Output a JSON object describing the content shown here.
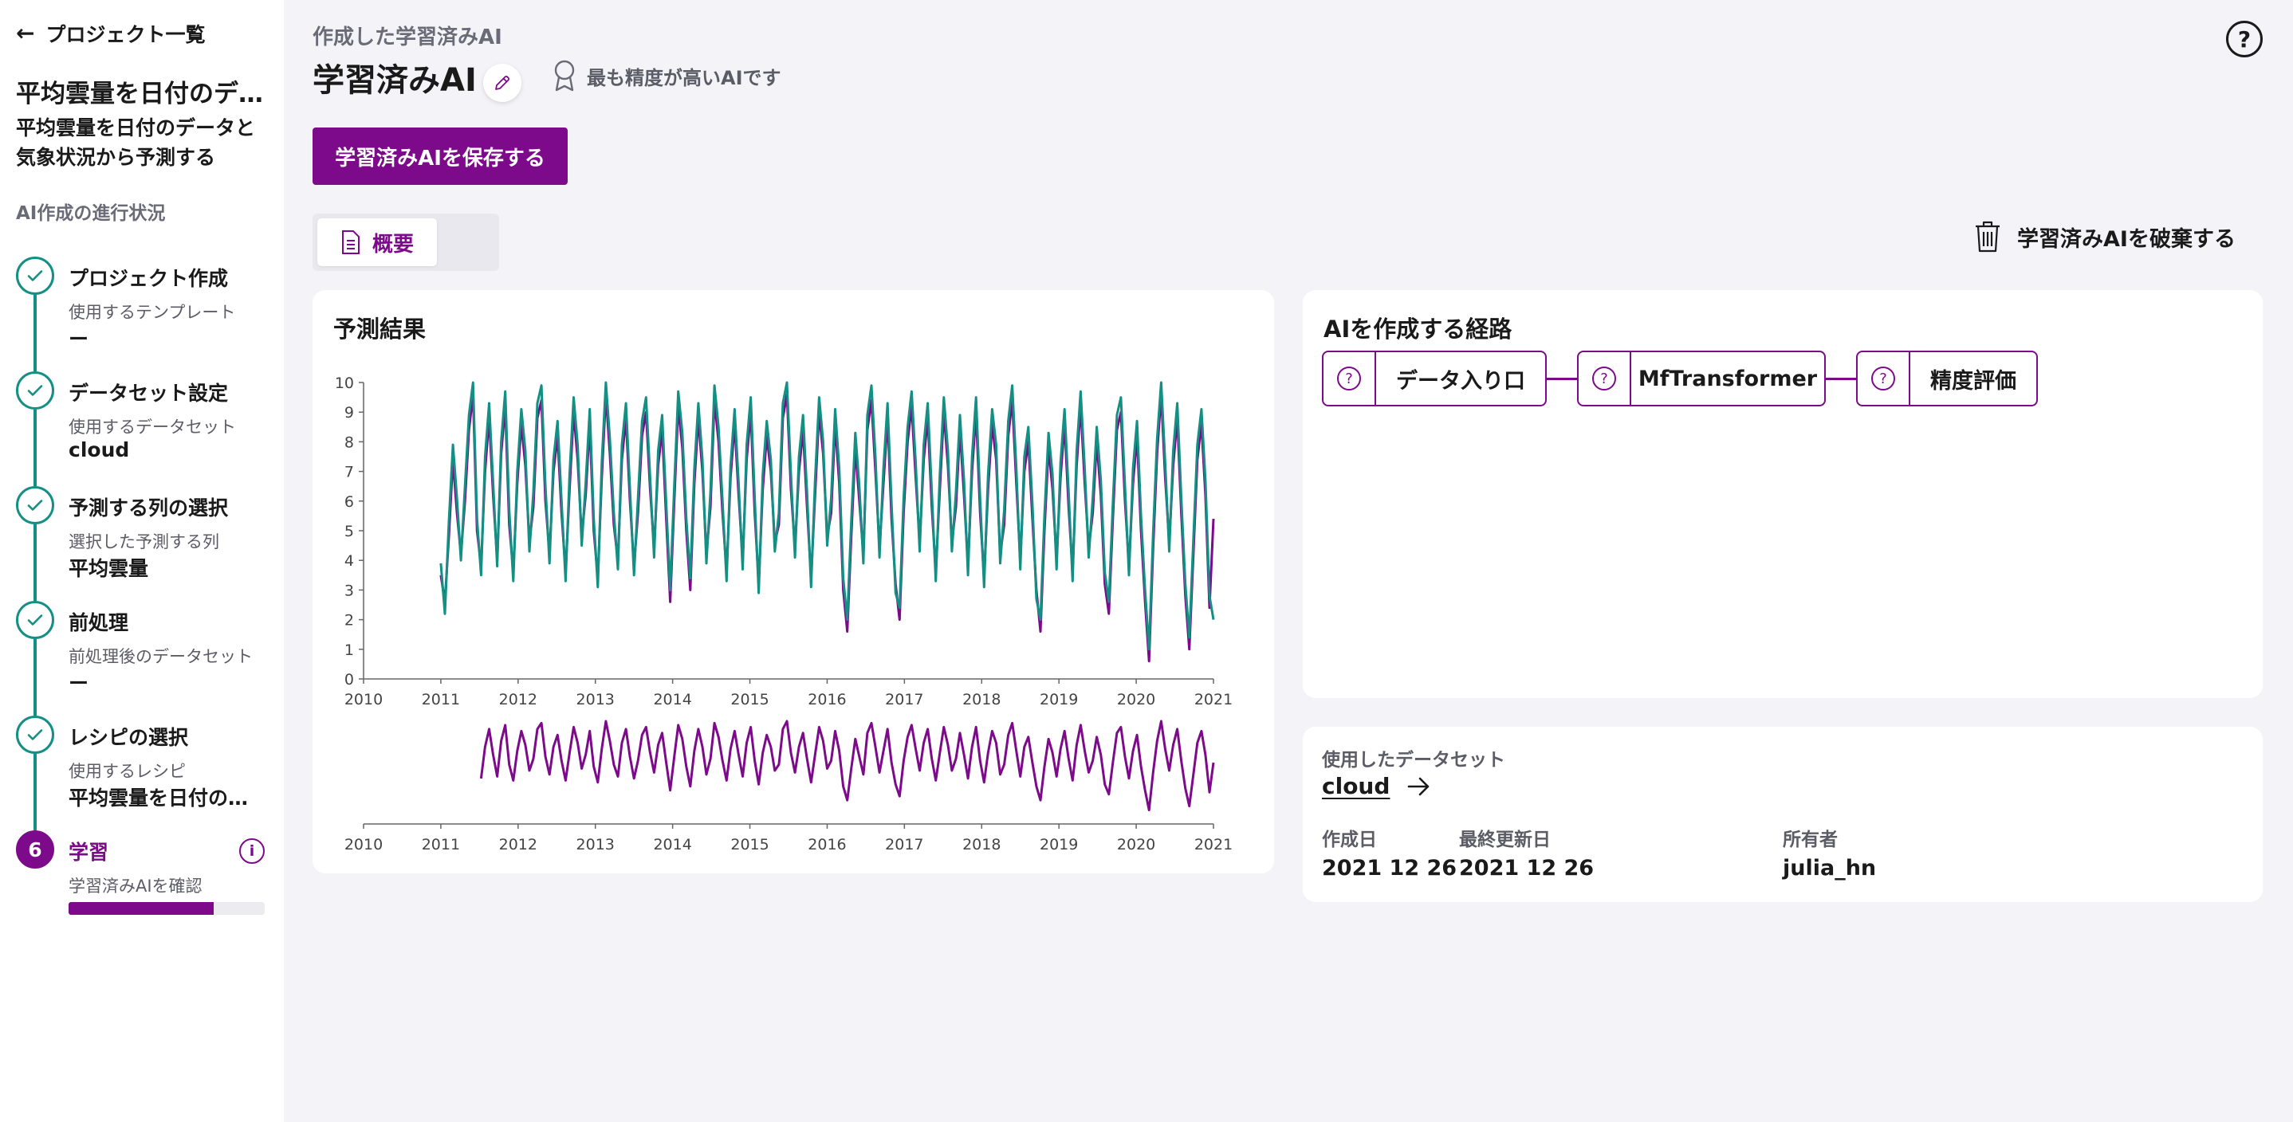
{
  "sidebar": {
    "back_label": "プロジェクト一覧",
    "project_title": "平均雲量を日付のデータと気象状況から予測する",
    "project_desc": "平均雲量を日付のデータと気象状況から予測する",
    "progress_label": "AI作成の進行状況",
    "steps": [
      {
        "title": "プロジェクト作成",
        "sub": "使用するテンプレート",
        "value": "ー"
      },
      {
        "title": "データセット設定",
        "sub": "使用するデータセット",
        "value": "cloud"
      },
      {
        "title": "予測する列の選択",
        "sub": "選択した予測する列",
        "value": "平均雲量"
      },
      {
        "title": "前処理",
        "sub": "前処理後のデータセット",
        "value": "ー"
      },
      {
        "title": "レシピの選択",
        "sub": "使用するレシピ",
        "value": "平均雲量を日付のデータと気象状況から予測する"
      },
      {
        "number": "6",
        "title": "学習",
        "sub": "学習済みAIを確認",
        "progress": 0.74
      }
    ]
  },
  "header": {
    "sub": "作成した学習済みAI",
    "title": "学習済みAI",
    "best_badge": "最も精度が高いAIです",
    "save_label": "学習済みAIを保存する",
    "help": "?"
  },
  "tabs": [
    {
      "label": "概要"
    }
  ],
  "discard_label": "学習済みAIを破棄する",
  "result_card": {
    "title": "予測結果"
  },
  "route_card": {
    "title": "AIを作成する経路",
    "nodes": [
      {
        "label": "データ入り口"
      },
      {
        "label": "MfTransformer"
      },
      {
        "label": "精度評価"
      }
    ]
  },
  "dataset_card": {
    "label": "使用したデータセット",
    "name": "cloud",
    "created_label": "作成日",
    "created": "2021 12 26",
    "updated_label": "最終更新日",
    "updated": "2021 12 26",
    "owner_label": "所有者",
    "owner": "julia_hn"
  },
  "colors": {
    "accent": "#7d0a8a",
    "teal": "#138f84"
  },
  "chart_data": {
    "type": "line",
    "x_start": 2011.0,
    "x_end": 2021.0,
    "xlim": [
      2010,
      2021
    ],
    "ylim": [
      0,
      10
    ],
    "x_ticks": [
      "2010",
      "2011",
      "2012",
      "2013",
      "2014",
      "2015",
      "2016",
      "2017",
      "2018",
      "2019",
      "2020",
      "2021"
    ],
    "y_ticks": [
      "0",
      "1",
      "2",
      "3",
      "4",
      "5",
      "6",
      "7",
      "8",
      "9",
      "10"
    ],
    "series": [
      {
        "color": "#7d0a8a",
        "values": [
          3.5,
          2.6,
          4.8,
          7.4,
          5.6,
          4.2,
          6.0,
          8.4,
          9.6,
          5.0,
          3.8,
          7.0,
          8.8,
          6.2,
          4.0,
          7.6,
          9.2,
          5.2,
          3.6,
          6.6,
          8.6,
          7.2,
          4.6,
          5.8,
          8.8,
          9.4,
          6.0,
          4.2,
          7.0,
          8.2,
          5.6,
          3.6,
          6.4,
          9.0,
          7.4,
          4.8,
          6.2,
          8.6,
          5.0,
          3.4,
          6.8,
          9.6,
          7.6,
          5.2,
          4.0,
          7.4,
          8.8,
          6.0,
          3.8,
          5.6,
          8.2,
          9.0,
          6.4,
          4.4,
          7.2,
          8.4,
          5.4,
          2.6,
          6.0,
          9.2,
          7.8,
          5.0,
          3.0,
          6.6,
          8.8,
          7.0,
          4.2,
          5.8,
          9.4,
          8.0,
          5.6,
          3.6,
          6.8,
          8.6,
          6.2,
          4.0,
          7.4,
          9.0,
          5.6,
          3.2,
          6.4,
          8.2,
          7.0,
          4.6,
          5.2,
          8.8,
          9.6,
          6.4,
          4.4,
          7.0,
          8.4,
          5.8,
          3.4,
          6.2,
          9.0,
          7.6,
          4.8,
          5.6,
          8.6,
          6.6,
          3.0,
          1.6,
          4.8,
          7.8,
          6.0,
          4.2,
          8.4,
          9.4,
          7.0,
          4.4,
          6.6,
          8.8,
          5.4,
          3.2,
          2.0,
          5.6,
          8.0,
          9.2,
          6.8,
          4.6,
          7.4,
          8.8,
          5.8,
          3.6,
          6.4,
          9.0,
          7.2,
          4.6,
          5.8,
          8.4,
          6.2,
          3.8,
          7.0,
          9.0,
          5.6,
          3.4,
          6.4,
          8.6,
          7.4,
          4.2,
          5.2,
          8.2,
          9.4,
          6.6,
          4.0,
          7.0,
          8.0,
          5.4,
          3.0,
          1.6,
          5.0,
          7.8,
          6.4,
          4.0,
          6.8,
          8.6,
          5.8,
          3.6,
          7.2,
          9.2,
          6.6,
          4.4,
          5.6,
          8.0,
          6.2,
          3.2,
          2.2,
          5.4,
          8.4,
          9.0,
          6.0,
          3.8,
          6.6,
          8.2,
          5.0,
          2.6,
          0.6,
          4.4,
          7.6,
          9.6,
          6.8,
          4.6,
          7.2,
          8.8,
          5.6,
          2.8,
          1.0,
          4.2,
          7.4,
          8.6,
          6.2,
          2.4,
          5.4
        ]
      },
      {
        "color": "#138f84",
        "values": [
          3.9,
          2.2,
          5.3,
          7.9,
          6.1,
          4.0,
          6.5,
          8.9,
          10.0,
          5.4,
          3.5,
          7.5,
          9.3,
          6.6,
          3.8,
          8.0,
          9.7,
          5.7,
          3.3,
          7.0,
          9.1,
          7.7,
          4.3,
          6.3,
          9.3,
          9.9,
          6.5,
          3.9,
          7.4,
          8.7,
          6.0,
          3.3,
          6.9,
          9.5,
          7.9,
          4.5,
          6.6,
          9.1,
          5.4,
          3.1,
          7.3,
          10.0,
          8.1,
          5.6,
          3.7,
          7.9,
          9.3,
          6.4,
          3.5,
          6.1,
          8.7,
          9.5,
          6.8,
          4.1,
          7.7,
          8.9,
          5.9,
          3.0,
          6.5,
          9.7,
          8.3,
          5.4,
          3.4,
          7.1,
          9.3,
          7.4,
          3.9,
          6.3,
          9.9,
          8.5,
          6.0,
          3.3,
          7.2,
          9.1,
          6.6,
          3.7,
          7.9,
          9.5,
          6.1,
          2.9,
          6.9,
          8.7,
          7.4,
          4.3,
          5.6,
          9.3,
          10.0,
          6.9,
          4.1,
          7.5,
          8.9,
          6.3,
          3.1,
          6.7,
          9.5,
          8.0,
          4.5,
          6.1,
          9.1,
          7.1,
          3.4,
          2.0,
          5.3,
          8.3,
          6.5,
          3.9,
          8.9,
          9.9,
          7.5,
          4.1,
          7.1,
          9.3,
          5.9,
          2.9,
          2.4,
          6.1,
          8.5,
          9.7,
          7.3,
          4.3,
          7.9,
          9.3,
          6.3,
          3.3,
          6.9,
          9.5,
          7.7,
          4.3,
          6.3,
          8.9,
          6.7,
          3.5,
          7.5,
          9.5,
          6.1,
          3.1,
          6.9,
          9.1,
          7.9,
          3.9,
          5.7,
          8.7,
          9.9,
          7.1,
          3.7,
          7.5,
          8.5,
          5.9,
          2.7,
          2.0,
          5.5,
          8.3,
          6.9,
          3.7,
          7.3,
          9.1,
          6.3,
          3.3,
          7.7,
          9.7,
          7.1,
          4.1,
          6.1,
          8.5,
          6.7,
          3.6,
          2.6,
          5.9,
          8.9,
          9.5,
          6.5,
          3.5,
          7.1,
          8.7,
          5.5,
          3.0,
          1.0,
          4.9,
          8.1,
          10.0,
          7.3,
          4.3,
          7.7,
          9.3,
          6.1,
          3.2,
          1.4,
          4.7,
          7.9,
          9.1,
          6.7,
          2.8,
          2.0
        ]
      }
    ],
    "brush": {
      "x_start": 2011.5,
      "x_end": 2021.0
    }
  }
}
